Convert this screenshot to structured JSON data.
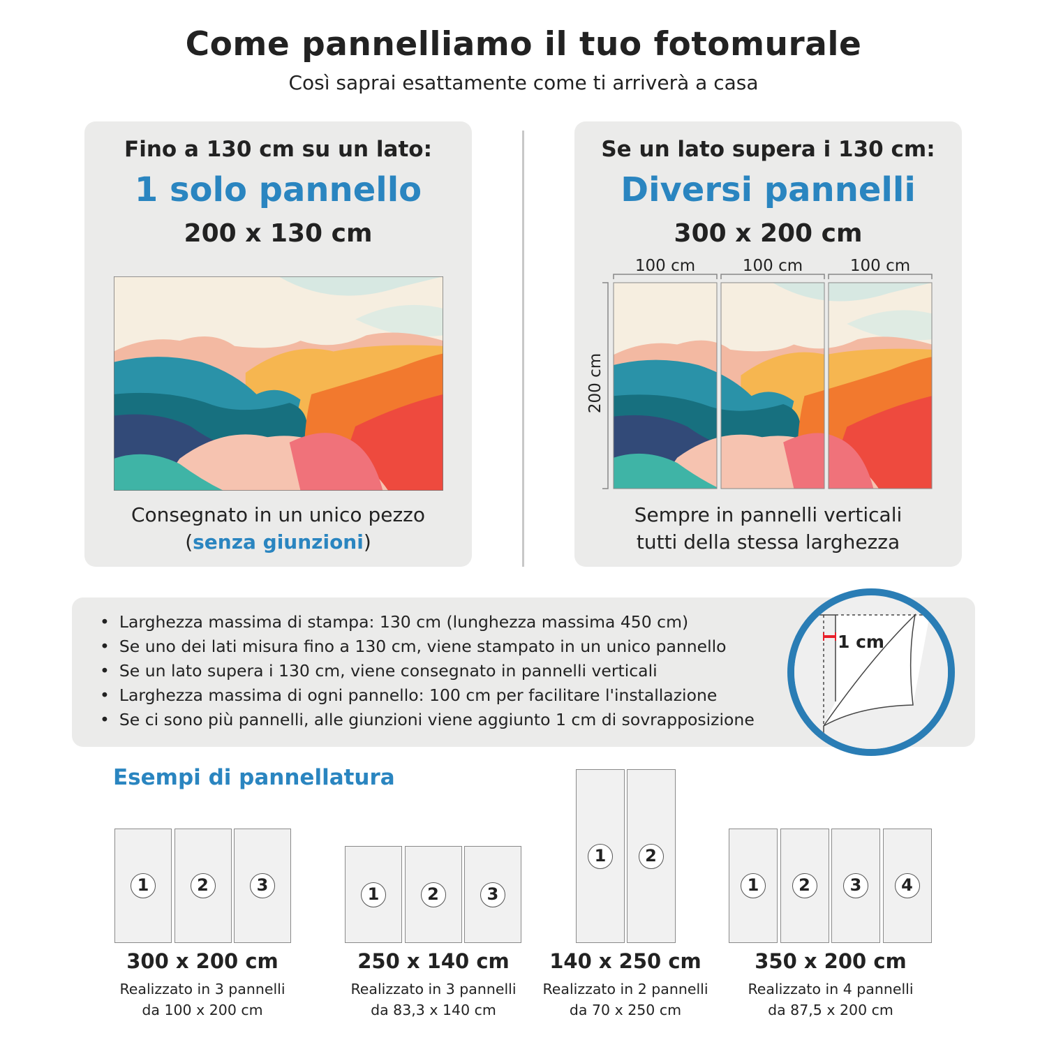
{
  "header": {
    "title": "Come pannelliamo il tuo fotomurale",
    "subtitle": "Così saprai esattamente come ti arriverà a casa"
  },
  "left_card": {
    "heading": "Fino a 130 cm su un lato:",
    "highlight": "1 solo pannello",
    "size": "200 x 130 cm",
    "footer_line1": "Consegnato in un unico pezzo",
    "footer_open": "(",
    "footer_highlight": "senza giunzioni",
    "footer_close": ")"
  },
  "right_card": {
    "heading": "Se un lato supera i 130 cm:",
    "highlight": "Diversi pannelli",
    "size": "300 x 200 cm",
    "panel_widths": [
      "100 cm",
      "100 cm",
      "100 cm"
    ],
    "height_label": "200 cm",
    "footer_line1": "Sempre in pannelli verticali",
    "footer_line2": "tutti della stessa larghezza"
  },
  "info": {
    "bullets": [
      "Larghezza massima di stampa: 130 cm (lunghezza massima 450 cm)",
      "Se uno dei lati misura fino a 130 cm, viene stampato in un unico pannello",
      "Se un lato supera i 130 cm, viene consegnato in pannelli verticali",
      "Larghezza massima di ogni pannello: 100 cm per facilitare l'installazione",
      "Se ci sono più pannelli, alle giunzioni viene aggiunto 1 cm di sovrapposizione"
    ],
    "overlap_label": "1 cm"
  },
  "examples": {
    "title": "Esempi di pannellatura",
    "items": [
      {
        "size": "300 x 200 cm",
        "line1": "Realizzato in 3 pannelli",
        "line2": "da 100 x 200 cm",
        "panels": [
          "1",
          "2",
          "3"
        ]
      },
      {
        "size": "250 x 140 cm",
        "line1": "Realizzato in 3 pannelli",
        "line2": "da 83,3 x 140 cm",
        "panels": [
          "1",
          "2",
          "3"
        ]
      },
      {
        "size": "140 x 250 cm",
        "line1": "Realizzato in 2 pannelli",
        "line2": "da 70 x 250 cm",
        "panels": [
          "1",
          "2"
        ]
      },
      {
        "size": "350 x 200 cm",
        "line1": "Realizzato in 4 pannelli",
        "line2": "da 87,5 x 200 cm",
        "panels": [
          "1",
          "2",
          "3",
          "4"
        ]
      }
    ]
  },
  "colors": {
    "accent": "#2a85c0",
    "card_bg": "#ebebea",
    "circle_border": "#2a7db5",
    "overlap_marker": "#e8202a"
  }
}
